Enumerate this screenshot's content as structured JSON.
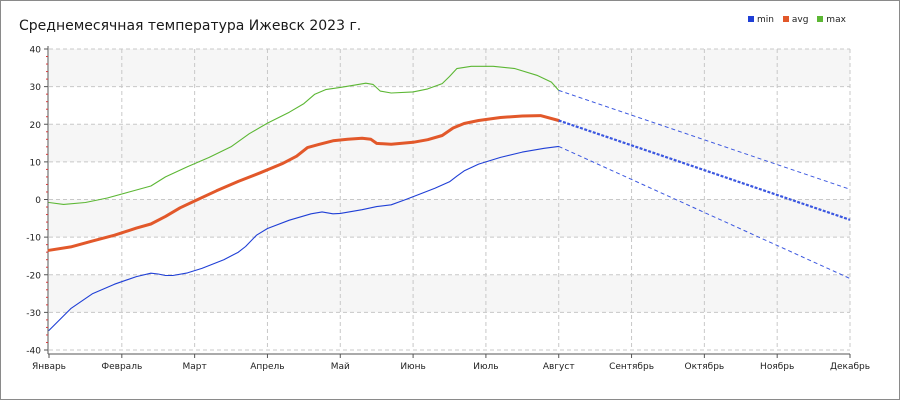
{
  "chart_data": {
    "type": "line",
    "title": "Среднемесячная температура Ижевск  2023 г.",
    "xlabel": "",
    "ylabel": "",
    "ylim": [
      -40,
      40
    ],
    "yticks": [
      -40,
      -30,
      -20,
      -10,
      0,
      10,
      20,
      30,
      40
    ],
    "categories": [
      "Январь",
      "Февраль",
      "Март",
      "Апрель",
      "Май",
      "Июнь",
      "Июль",
      "Август",
      "Сентябрь",
      "Октябрь",
      "Ноябрь",
      "Декабрь"
    ],
    "grid": true,
    "legend_position": "top-right",
    "series": [
      {
        "name": "min",
        "color": "#1f3fd6",
        "actual": [
          [
            0,
            -34.8
          ],
          [
            0.3,
            -29
          ],
          [
            0.6,
            -25
          ],
          [
            0.9,
            -22.5
          ],
          [
            1.2,
            -20.5
          ],
          [
            1.4,
            -19.6
          ],
          [
            1.5,
            -19.8
          ],
          [
            1.6,
            -20.2
          ],
          [
            1.7,
            -20.2
          ],
          [
            1.9,
            -19.5
          ],
          [
            2.1,
            -18.3
          ],
          [
            2.4,
            -16
          ],
          [
            2.6,
            -14
          ],
          [
            2.7,
            -12.5
          ],
          [
            2.85,
            -9.5
          ],
          [
            3.0,
            -7.7
          ],
          [
            3.3,
            -5.5
          ],
          [
            3.6,
            -3.8
          ],
          [
            3.75,
            -3.3
          ],
          [
            3.9,
            -3.8
          ],
          [
            4.0,
            -3.7
          ],
          [
            4.3,
            -2.7
          ],
          [
            4.5,
            -1.9
          ],
          [
            4.7,
            -1.4
          ],
          [
            4.9,
            0
          ],
          [
            5.1,
            1.5
          ],
          [
            5.3,
            3
          ],
          [
            5.5,
            4.7
          ],
          [
            5.6,
            6.2
          ],
          [
            5.7,
            7.6
          ],
          [
            5.9,
            9.4
          ],
          [
            6.2,
            11.2
          ],
          [
            6.5,
            12.6
          ],
          [
            6.8,
            13.6
          ],
          [
            7.0,
            14.1
          ]
        ],
        "forecast": [
          [
            7.0,
            14.1
          ],
          [
            11.0,
            -21
          ]
        ]
      },
      {
        "name": "avg",
        "color": "#e2582a",
        "actual": [
          [
            0,
            -13.5
          ],
          [
            0.3,
            -12.6
          ],
          [
            0.6,
            -11
          ],
          [
            0.9,
            -9.5
          ],
          [
            1.2,
            -7.6
          ],
          [
            1.4,
            -6.5
          ],
          [
            1.6,
            -4.5
          ],
          [
            1.8,
            -2.2
          ],
          [
            2.0,
            -0.4
          ],
          [
            2.3,
            2.3
          ],
          [
            2.6,
            4.8
          ],
          [
            2.9,
            7.1
          ],
          [
            3.2,
            9.5
          ],
          [
            3.4,
            11.5
          ],
          [
            3.55,
            13.8
          ],
          [
            3.7,
            14.6
          ],
          [
            3.9,
            15.6
          ],
          [
            4.1,
            16.0
          ],
          [
            4.3,
            16.3
          ],
          [
            4.42,
            16.0
          ],
          [
            4.5,
            14.9
          ],
          [
            4.7,
            14.7
          ],
          [
            5.0,
            15.2
          ],
          [
            5.2,
            15.9
          ],
          [
            5.4,
            17.0
          ],
          [
            5.55,
            19.0
          ],
          [
            5.7,
            20.2
          ],
          [
            5.9,
            21.0
          ],
          [
            6.2,
            21.8
          ],
          [
            6.5,
            22.2
          ],
          [
            6.75,
            22.3
          ],
          [
            7.0,
            21.0
          ]
        ],
        "forecast": [
          [
            7.0,
            21.0
          ],
          [
            11.0,
            -5.4
          ]
        ]
      },
      {
        "name": "max",
        "color": "#5cb734",
        "actual": [
          [
            0,
            -0.8
          ],
          [
            0.2,
            -1.3
          ],
          [
            0.5,
            -0.8
          ],
          [
            0.8,
            0.4
          ],
          [
            1.1,
            2.0
          ],
          [
            1.4,
            3.6
          ],
          [
            1.6,
            6.0
          ],
          [
            1.9,
            8.7
          ],
          [
            2.2,
            11.2
          ],
          [
            2.5,
            14.0
          ],
          [
            2.75,
            17.5
          ],
          [
            3.0,
            20.3
          ],
          [
            3.3,
            23.2
          ],
          [
            3.5,
            25.5
          ],
          [
            3.65,
            28.0
          ],
          [
            3.8,
            29.2
          ],
          [
            4.0,
            29.8
          ],
          [
            4.2,
            30.4
          ],
          [
            4.35,
            30.9
          ],
          [
            4.45,
            30.6
          ],
          [
            4.55,
            28.8
          ],
          [
            4.7,
            28.3
          ],
          [
            5.0,
            28.6
          ],
          [
            5.2,
            29.4
          ],
          [
            5.4,
            30.8
          ],
          [
            5.5,
            32.7
          ],
          [
            5.6,
            34.8
          ],
          [
            5.8,
            35.4
          ],
          [
            6.1,
            35.4
          ],
          [
            6.4,
            34.8
          ],
          [
            6.7,
            33.0
          ],
          [
            6.9,
            31.2
          ],
          [
            7.0,
            29.0
          ]
        ],
        "forecast": [
          [
            7.0,
            29.0
          ],
          [
            11.0,
            2.7
          ]
        ]
      }
    ]
  }
}
